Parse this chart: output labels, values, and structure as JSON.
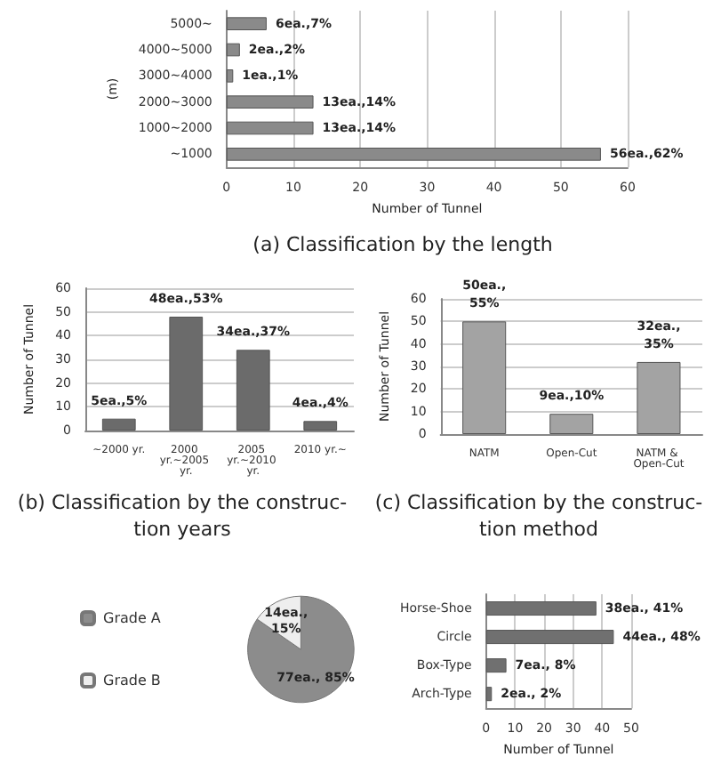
{
  "chart_data": [
    {
      "type": "bar",
      "orientation": "horizontal",
      "title": "(a) Classification by the length",
      "xlabel": "Number of Tunnel",
      "ylabel": "(m)",
      "categories": [
        "5000~",
        "4000~5000",
        "3000~4000",
        "2000~3000",
        "1000~2000",
        "~1000"
      ],
      "values": [
        6,
        2,
        1,
        13,
        13,
        56
      ],
      "value_labels": [
        "6ea.,7%",
        "2ea.,2%",
        "1ea.,1%",
        "13ea.,14%",
        "13ea.,14%",
        "56ea.,62%"
      ],
      "color": "#8a8a8a",
      "xlim": [
        0,
        60
      ],
      "xticks": [
        0,
        10,
        20,
        30,
        40,
        50,
        60
      ],
      "grid": "x"
    },
    {
      "type": "bar",
      "title": "(b) Classification by the construc-\ntion years",
      "ylabel": "Number of Tunnel",
      "categories": [
        "~2000 yr.",
        "2000 yr.~2005 yr.",
        "2005 yr.~2010 yr.",
        "2010 yr.~"
      ],
      "values": [
        5,
        48,
        34,
        4
      ],
      "value_labels": [
        "5ea.,5%",
        "48ea.,53%",
        "34ea.,37%",
        "4ea.,4%"
      ],
      "color": "#6b6b6b",
      "ylim": [
        0,
        60
      ],
      "yticks": [
        0,
        10,
        20,
        30,
        40,
        50,
        60
      ],
      "grid": "y"
    },
    {
      "type": "bar",
      "title": "(c) Classification by the construc-\ntion method",
      "ylabel": "Number of Tunnel",
      "categories": [
        "NATM",
        "Open-Cut",
        "NATM & Open-Cut"
      ],
      "values": [
        50,
        9,
        32
      ],
      "value_labels": [
        "50ea.,\n55%",
        "9ea.,10%",
        "32ea.,\n35%"
      ],
      "color": "#a3a3a3",
      "ylim": [
        0,
        60
      ],
      "yticks": [
        0,
        10,
        20,
        30,
        40,
        50,
        60
      ],
      "grid": "y"
    },
    {
      "type": "pie",
      "categories": [
        "Grade A",
        "Grade B"
      ],
      "values": [
        77,
        14
      ],
      "value_labels": [
        "77ea., 85%",
        "14ea.,\n15%"
      ],
      "colors": [
        "#8c8c8c",
        "#eeeeee"
      ],
      "legend": "left"
    },
    {
      "type": "bar",
      "orientation": "horizontal",
      "xlabel": "Number of Tunnel",
      "categories": [
        "Horse-Shoe",
        "Circle",
        "Box-Type",
        "Arch-Type"
      ],
      "values": [
        38,
        44,
        7,
        2
      ],
      "value_labels": [
        "38ea., 41%",
        "44ea., 48%",
        "7ea., 8%",
        "2ea., 2%"
      ],
      "color": "#707070",
      "xlim": [
        0,
        50
      ],
      "xticks": [
        0,
        10,
        20,
        30,
        40,
        50
      ],
      "grid": "x"
    }
  ]
}
